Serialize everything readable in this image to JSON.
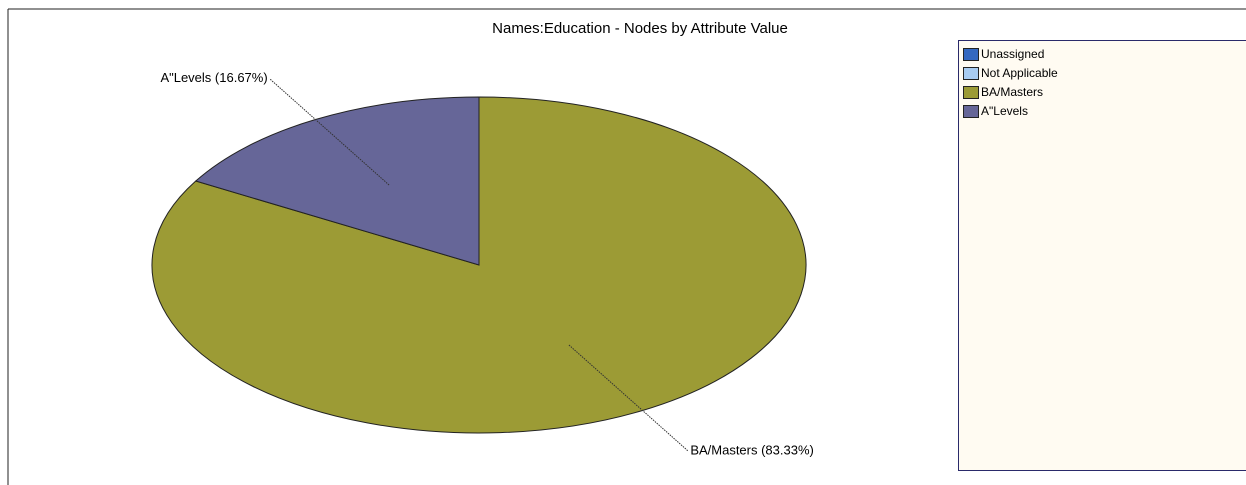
{
  "chart_data": {
    "type": "pie",
    "title": "Names:Education - Nodes by Attribute Value",
    "categories": [
      "Unassigned",
      "Not Applicable",
      "BA/Masters",
      "A\"Levels"
    ],
    "values": [
      0,
      0,
      83.33,
      16.67
    ],
    "value_labels": [
      null,
      null,
      "BA/Masters (83.33%)",
      "A\"Levels (16.67%)"
    ],
    "colors": [
      "#3468c0",
      "#a8ccf2",
      "#9c9b35",
      "#666698"
    ],
    "legend": "right"
  }
}
